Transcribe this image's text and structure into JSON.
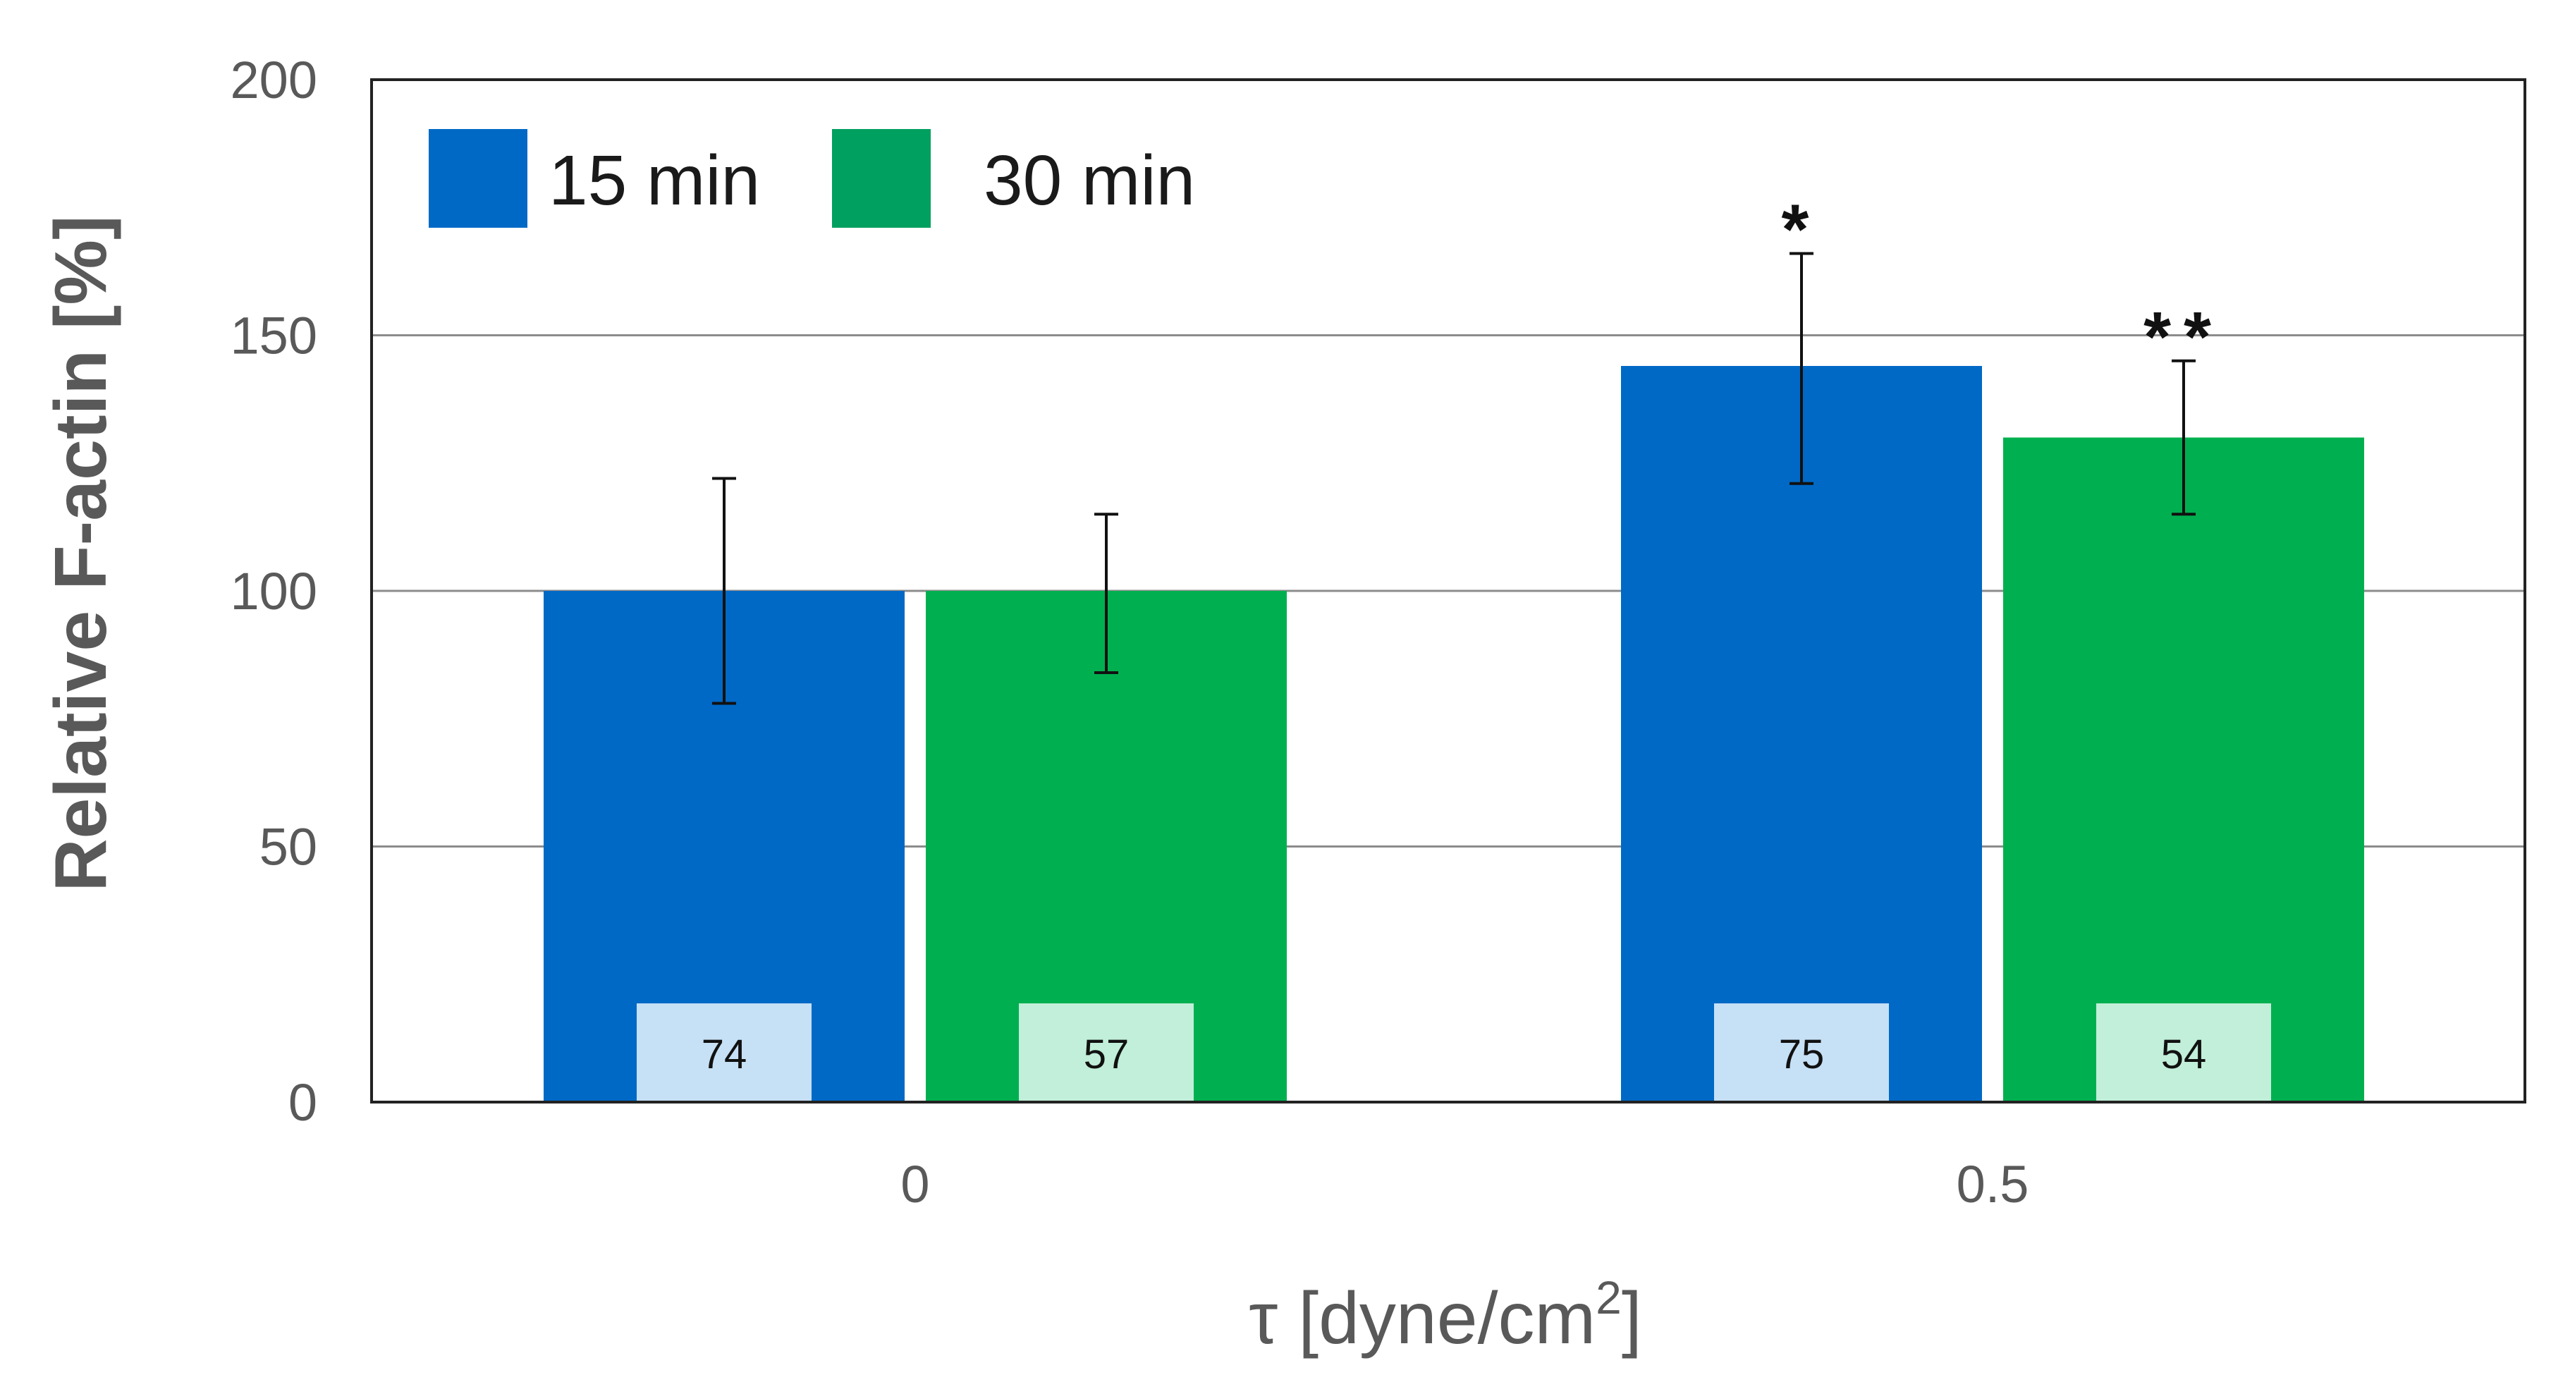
{
  "chart_data": {
    "type": "bar",
    "categories": [
      "0",
      "0.5"
    ],
    "series": [
      {
        "name": "15 min",
        "color": "#0069C6",
        "label_box_color": "#C6E0F5",
        "values": [
          100,
          144
        ],
        "error": [
          [
            78,
            122
          ],
          [
            121,
            166
          ]
        ],
        "n_labels": [
          "74",
          "75"
        ],
        "annotations": [
          "",
          "*"
        ]
      },
      {
        "name": "30 min",
        "color": "#00B050",
        "label_box_color": "#C1EFD9",
        "legend_color": "#00A060",
        "values": [
          100,
          130
        ],
        "error": [
          [
            84,
            115
          ],
          [
            115,
            145
          ]
        ],
        "n_labels": [
          "57",
          "54"
        ],
        "annotations": [
          "",
          "**"
        ]
      }
    ],
    "title": "",
    "xlabel": "τ [dyne/cm",
    "xlabel_sup": "2",
    "xlabel_close": "]",
    "ylabel": "Relative F-actin [%]",
    "ylim": [
      0,
      200
    ],
    "yticks": [
      "0",
      "50",
      "100",
      "150",
      "200"
    ],
    "grid": true,
    "legend_position": "top-left"
  }
}
